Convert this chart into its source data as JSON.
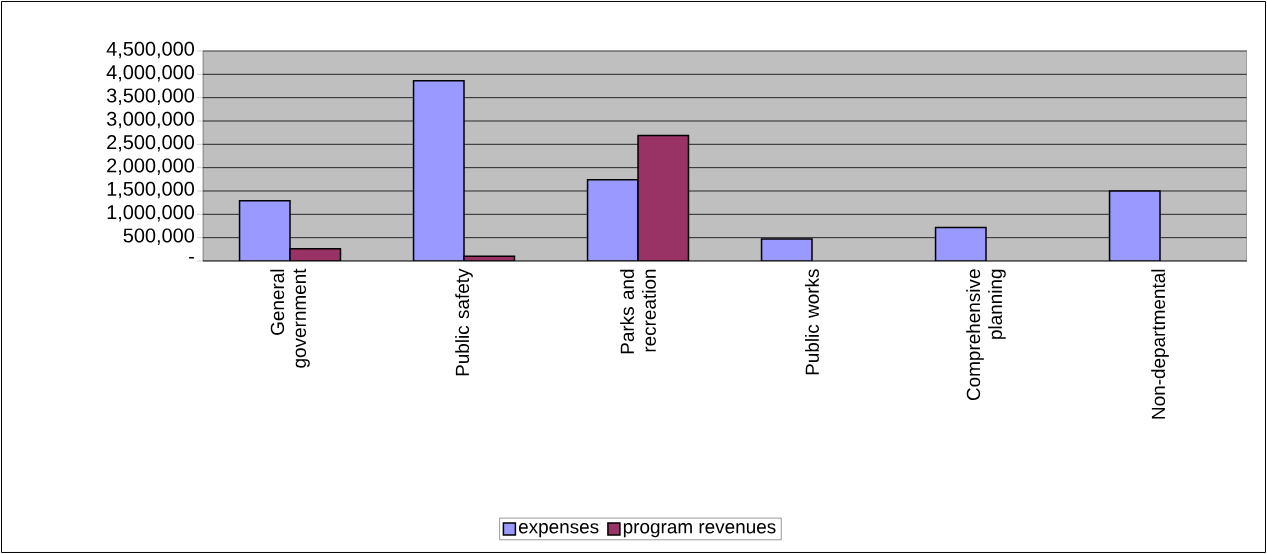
{
  "chart_data": {
    "type": "bar",
    "categories": [
      "General government",
      "Public safety",
      "Parks and recreation",
      "Public works",
      "Comprehensive planning",
      "Non-departmental"
    ],
    "series": [
      {
        "name": "expenses",
        "color": "#9999ff",
        "values": [
          1290000,
          3860000,
          1740000,
          470000,
          720000,
          1500000
        ]
      },
      {
        "name": "program revenues",
        "color": "#993366",
        "values": [
          260000,
          100000,
          2690000,
          null,
          null,
          null
        ]
      }
    ],
    "ylim": [
      0,
      4500000
    ],
    "yticks": [
      {
        "value": 0,
        "label": "-"
      },
      {
        "value": 500000,
        "label": "500,000"
      },
      {
        "value": 1000000,
        "label": "1,000,000"
      },
      {
        "value": 1500000,
        "label": "1,500,000"
      },
      {
        "value": 2000000,
        "label": "2,000,000"
      },
      {
        "value": 2500000,
        "label": "2,500,000"
      },
      {
        "value": 3000000,
        "label": "3,000,000"
      },
      {
        "value": 3500000,
        "label": "3,500,000"
      },
      {
        "value": 4000000,
        "label": "4,000,000"
      },
      {
        "value": 4500000,
        "label": "4,500,000"
      }
    ],
    "grid": "y",
    "legend": "bottom"
  }
}
